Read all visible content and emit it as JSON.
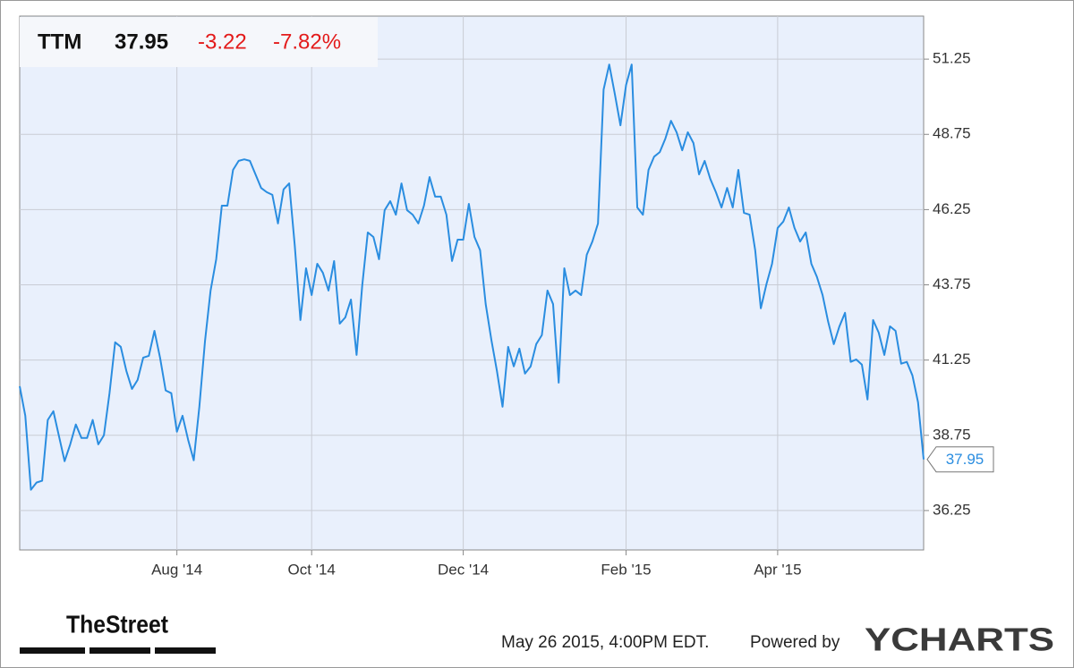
{
  "chart_data": {
    "type": "line",
    "ticker": "TTM",
    "change": "-3.22",
    "change_pct": "-7.82%",
    "color": "#2a8de0",
    "grid": true,
    "values": [
      40.38,
      39.4,
      36.94,
      37.18,
      37.24,
      39.26,
      39.55,
      38.72,
      37.89,
      38.45,
      39.11,
      38.66,
      38.66,
      39.26,
      38.45,
      38.75,
      40.15,
      41.84,
      41.69,
      40.89,
      40.29,
      40.59,
      41.33,
      41.39,
      42.22,
      41.33,
      40.24,
      40.15,
      38.87,
      39.4,
      38.6,
      37.92,
      39.7,
      41.87,
      43.56,
      44.6,
      46.38,
      46.38,
      47.57,
      47.87,
      47.92,
      47.87,
      47.42,
      46.97,
      46.83,
      46.74,
      45.79,
      46.92,
      47.12,
      45.04,
      42.58,
      44.3,
      43.41,
      44.45,
      44.15,
      43.56,
      44.54,
      42.46,
      42.67,
      43.26,
      41.42,
      43.71,
      45.49,
      45.34,
      44.6,
      46.23,
      46.53,
      46.08,
      47.12,
      46.23,
      46.08,
      45.79,
      46.38,
      47.33,
      46.68,
      46.68,
      46.08,
      44.54,
      45.25,
      45.25,
      46.44,
      45.34,
      44.9,
      43.11,
      41.93,
      40.89,
      39.7,
      41.69,
      41.04,
      41.63,
      40.8,
      41.04,
      41.78,
      42.08,
      43.56,
      43.11,
      40.5,
      44.3,
      43.41,
      43.56,
      43.41,
      44.75,
      45.19,
      45.79,
      50.24,
      51.07,
      50.09,
      49.05,
      50.39,
      51.07,
      46.32,
      46.08,
      47.57,
      48.01,
      48.16,
      48.61,
      49.2,
      48.82,
      48.22,
      48.82,
      48.46,
      47.42,
      47.87,
      47.27,
      46.83,
      46.32,
      46.97,
      46.32,
      47.57,
      46.14,
      46.08,
      44.9,
      42.97,
      43.77,
      44.45,
      45.64,
      45.85,
      46.32,
      45.64,
      45.19,
      45.49,
      44.45,
      44.01,
      43.41,
      42.52,
      41.78,
      42.37,
      42.82,
      41.19,
      41.27,
      41.1,
      39.94,
      42.58,
      42.16,
      41.42,
      42.37,
      42.22,
      41.13,
      41.19,
      40.74,
      39.85,
      37.95
    ],
    "xlim": [
      0,
      161
    ],
    "xticks": [
      {
        "value": 28,
        "label": "Aug '14"
      },
      {
        "value": 52,
        "label": "Oct '14"
      },
      {
        "value": 79,
        "label": "Dec '14"
      },
      {
        "value": 108,
        "label": "Feb '15"
      },
      {
        "value": 135,
        "label": "Apr '15"
      }
    ],
    "ylim": [
      34.94,
      52.68
    ],
    "yticks": [
      36.25,
      38.75,
      41.25,
      43.75,
      46.25,
      48.75,
      51.25
    ],
    "brand": "TheStreet",
    "timestamp": "May 26 2015, 4:00PM EDT.",
    "powered_by": "Powered by",
    "provider": "YCHARTS"
  }
}
